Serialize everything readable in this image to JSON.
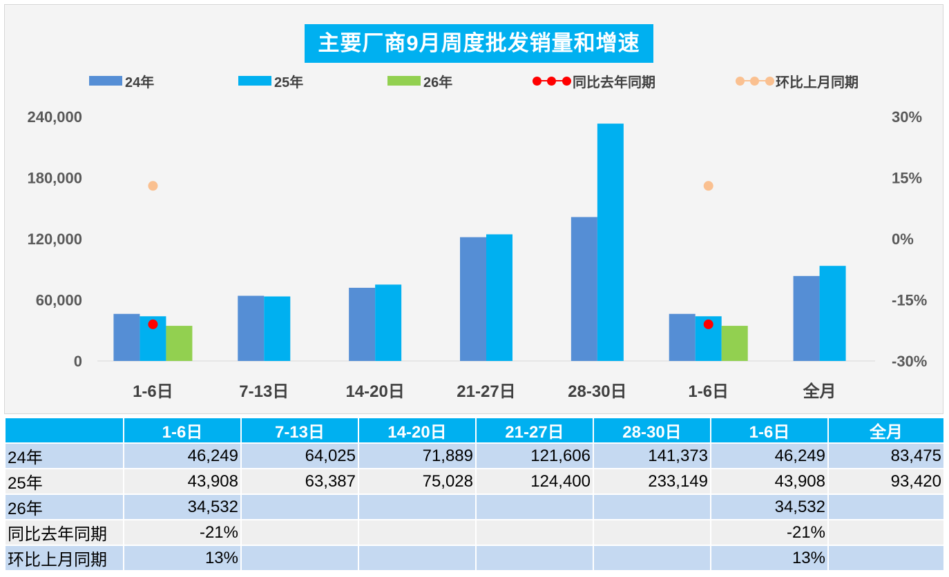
{
  "chart_data": {
    "type": "bar",
    "title": "主要厂商9月周度批发销量和增速",
    "categories": [
      "1-6日",
      "7-13日",
      "14-20日",
      "21-27日",
      "28-30日",
      "1-6日",
      "全月"
    ],
    "series": [
      {
        "name": "24年",
        "kind": "bar",
        "color": "#558ed5",
        "values": [
          46249,
          64025,
          71889,
          121606,
          141373,
          46249,
          83475
        ]
      },
      {
        "name": "25年",
        "kind": "bar",
        "color": "#00b0f0",
        "values": [
          43908,
          63387,
          75028,
          124400,
          233149,
          43908,
          93420
        ]
      },
      {
        "name": "26年",
        "kind": "bar",
        "color": "#92d050",
        "values": [
          34532,
          null,
          null,
          null,
          null,
          34532,
          null
        ]
      },
      {
        "name": "同比去年同期",
        "kind": "line",
        "axis": "right",
        "color": "#ff0000",
        "values": [
          -0.21,
          null,
          null,
          null,
          null,
          -0.21,
          null
        ]
      },
      {
        "name": "环比上月同期",
        "kind": "line",
        "axis": "right",
        "color": "#fac090",
        "values": [
          0.13,
          null,
          null,
          null,
          null,
          0.13,
          null
        ]
      }
    ],
    "y_left": {
      "ylim": [
        0,
        240000
      ],
      "ticks": [
        "0",
        "60,000",
        "120,000",
        "180,000",
        "240,000"
      ]
    },
    "y_right": {
      "ylim": [
        -0.3,
        0.3
      ],
      "ticks": [
        "-30%",
        "-15%",
        "0%",
        "15%",
        "30%"
      ]
    },
    "legend_position": "top",
    "grid": false
  },
  "table": {
    "headers": [
      "",
      "1-6日",
      "7-13日",
      "14-20日",
      "21-27日",
      "28-30日",
      "1-6日",
      "全月"
    ],
    "rows": [
      {
        "label": "24年",
        "cells": [
          "46,249",
          "64,025",
          "71,889",
          "121,606",
          "141,373",
          "46,249",
          "83,475"
        ]
      },
      {
        "label": "25年",
        "cells": [
          "43,908",
          "63,387",
          "75,028",
          "124,400",
          "233,149",
          "43,908",
          "93,420"
        ]
      },
      {
        "label": "26年",
        "cells": [
          "34,532",
          "",
          "",
          "",
          "",
          "34,532",
          ""
        ]
      },
      {
        "label": "同比去年同期",
        "cells": [
          "-21%",
          "",
          "",
          "",
          "",
          "-21%",
          ""
        ]
      },
      {
        "label": "环比上月同期",
        "cells": [
          "13%",
          "",
          "",
          "",
          "",
          "13%",
          ""
        ]
      }
    ]
  }
}
